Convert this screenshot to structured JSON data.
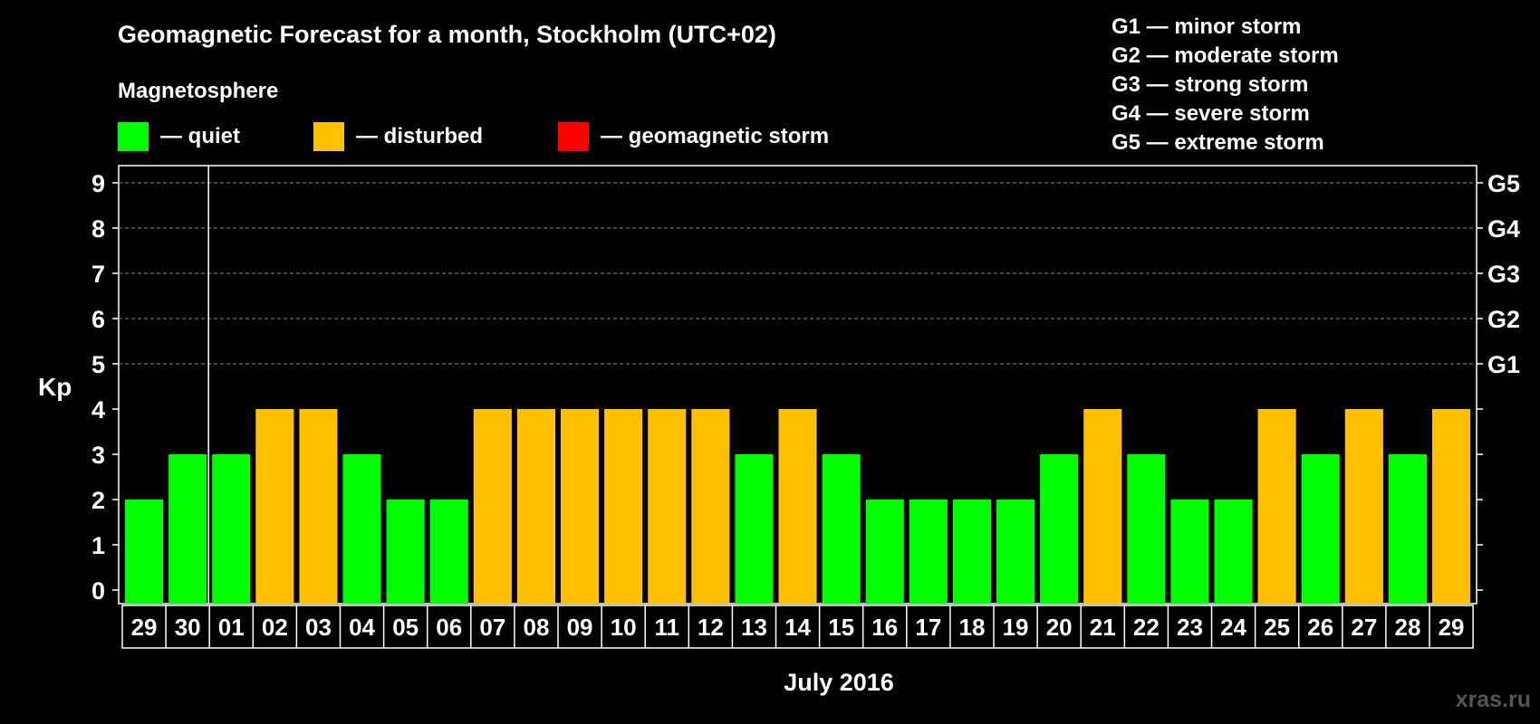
{
  "chart_data": {
    "type": "bar",
    "title": "Geomagnetic Forecast for a month, Stockholm (UTC+02)",
    "legend_title": "Magnetosphere",
    "legend": [
      {
        "key": "quiet",
        "label": "— quiet",
        "color": "#00ff00"
      },
      {
        "key": "disturbed",
        "label": "— disturbed",
        "color": "#ffc000"
      },
      {
        "key": "storm",
        "label": "— geomagnetic storm",
        "color": "#ff0000"
      }
    ],
    "storm_scale": [
      "G1 — minor storm",
      "G2 — moderate storm",
      "G3 — strong storm",
      "G4 — severe storm",
      "G5 — extreme storm"
    ],
    "ylabel": "Kp",
    "xlabel": "July 2016",
    "ylim": [
      0,
      9
    ],
    "yticks": [
      "0",
      "1",
      "2",
      "3",
      "4",
      "5",
      "6",
      "7",
      "8",
      "9"
    ],
    "right_labels": [
      {
        "kp": 5,
        "label": "G1"
      },
      {
        "kp": 6,
        "label": "G2"
      },
      {
        "kp": 7,
        "label": "G3"
      },
      {
        "kp": 8,
        "label": "G4"
      },
      {
        "kp": 9,
        "label": "G5"
      }
    ],
    "grid": "dashed at Kp 5-9",
    "categories": [
      "29",
      "30",
      "01",
      "02",
      "03",
      "04",
      "05",
      "06",
      "07",
      "08",
      "09",
      "10",
      "11",
      "12",
      "13",
      "14",
      "15",
      "16",
      "17",
      "18",
      "19",
      "20",
      "21",
      "22",
      "23",
      "24",
      "25",
      "26",
      "27",
      "28",
      "29"
    ],
    "values": [
      2,
      3,
      3,
      4,
      4,
      3,
      2,
      2,
      4,
      4,
      4,
      4,
      4,
      4,
      3,
      4,
      3,
      2,
      2,
      2,
      2,
      3,
      4,
      3,
      2,
      2,
      4,
      3,
      4,
      3,
      4
    ],
    "bar_status": [
      "quiet",
      "quiet",
      "quiet",
      "disturbed",
      "disturbed",
      "quiet",
      "quiet",
      "quiet",
      "disturbed",
      "disturbed",
      "disturbed",
      "disturbed",
      "disturbed",
      "disturbed",
      "quiet",
      "disturbed",
      "quiet",
      "quiet",
      "quiet",
      "quiet",
      "quiet",
      "quiet",
      "disturbed",
      "quiet",
      "quiet",
      "quiet",
      "disturbed",
      "quiet",
      "disturbed",
      "quiet",
      "disturbed"
    ],
    "month_boundary_after_index": 1
  },
  "watermark": "xras.ru"
}
